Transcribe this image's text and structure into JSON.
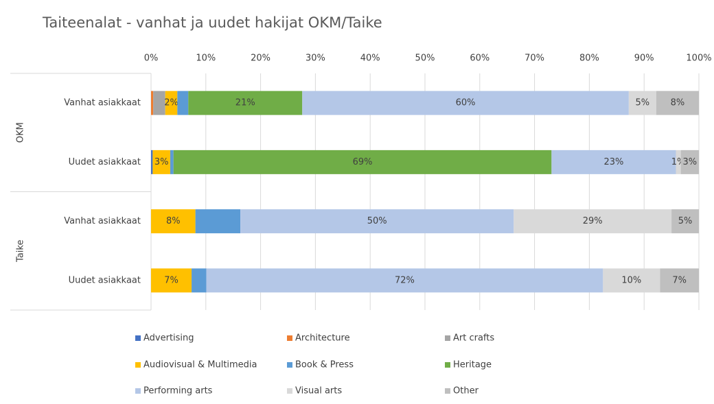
{
  "chart_data": {
    "type": "stacked_barh_100",
    "title": "Taiteenalat - vanhat ja uudet hakijat OKM/Taike",
    "category_groups": [
      {
        "name": "OKM",
        "categories": [
          "Vanhat asiakkaat",
          "Uudet asiakkaat"
        ]
      },
      {
        "name": "Taike",
        "categories": [
          "Vanhat asiakkaat",
          "Uudet asiakkaat"
        ]
      }
    ],
    "series": [
      {
        "name": "Advertising",
        "color": "#4472c4",
        "values": [
          0,
          0.3,
          0,
          0
        ],
        "value_labels": [
          null,
          null,
          null,
          null
        ]
      },
      {
        "name": "Architecture",
        "color": "#ed7d31",
        "values": [
          0.4,
          0,
          0,
          0
        ],
        "value_labels": [
          null,
          null,
          null,
          null
        ]
      },
      {
        "name": "Art crafts",
        "color": "#a5a5a5",
        "values": [
          2.2,
          0,
          0,
          0
        ],
        "value_labels": [
          null,
          null,
          null,
          null
        ]
      },
      {
        "name": "Audiovisual & Multimedia",
        "color": "#ffc000",
        "values": [
          2.2,
          3.2,
          8.1,
          7.4
        ],
        "value_labels": [
          "2%",
          "3%",
          "8%",
          "7%"
        ]
      },
      {
        "name": "Book & Press",
        "color": "#5b9bd5",
        "values": [
          2,
          0.6,
          8.2,
          2.7
        ],
        "value_labels": [
          null,
          null,
          null,
          null
        ]
      },
      {
        "name": "Heritage",
        "color": "#70ad47",
        "values": [
          20.8,
          69,
          0,
          0
        ],
        "value_labels": [
          "21%",
          "69%",
          null,
          null
        ]
      },
      {
        "name": "Performing arts",
        "color": "#b4c7e7",
        "values": [
          59.6,
          22.7,
          49.9,
          72.4
        ],
        "value_labels": [
          "60%",
          "23%",
          "50%",
          "72%"
        ]
      },
      {
        "name": "Visual arts",
        "color": "#d9d9d9",
        "values": [
          5,
          0.9,
          28.8,
          10.4
        ],
        "value_labels": [
          "5%",
          "1%",
          "29%",
          "10%"
        ]
      },
      {
        "name": "Other",
        "color": "#bfbfbf",
        "values": [
          7.8,
          3.3,
          5,
          7.1
        ],
        "value_labels": [
          "8%",
          "3%",
          "5%",
          "7%"
        ]
      }
    ],
    "xlim": [
      0,
      100
    ],
    "xticks": [
      {
        "value": 0,
        "label": "0%"
      },
      {
        "value": 10,
        "label": "10%"
      },
      {
        "value": 20,
        "label": "20%"
      },
      {
        "value": 30,
        "label": "30%"
      },
      {
        "value": 40,
        "label": "40%"
      },
      {
        "value": 50,
        "label": "50%"
      },
      {
        "value": 60,
        "label": "60%"
      },
      {
        "value": 70,
        "label": "70%"
      },
      {
        "value": 80,
        "label": "80%"
      },
      {
        "value": 90,
        "label": "90%"
      },
      {
        "value": 100,
        "label": "100%"
      }
    ],
    "grid": true,
    "legend": "bottom"
  }
}
